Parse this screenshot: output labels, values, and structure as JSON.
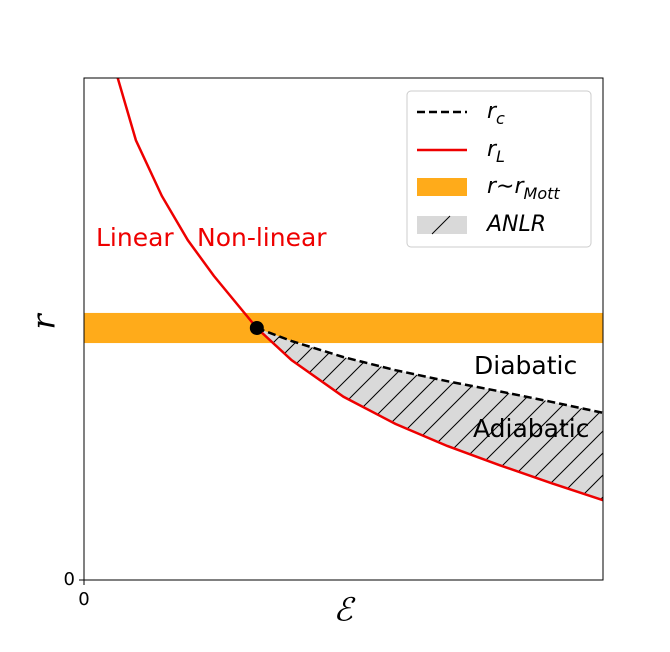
{
  "chart_data": {
    "type": "line",
    "x_label": "ℰ",
    "y_label": "r",
    "xlim": [
      0,
      10
    ],
    "ylim": [
      0,
      10
    ],
    "xticks": [
      0
    ],
    "yticks": [
      0
    ],
    "x": [
      0.65,
      1.0,
      1.5,
      2.0,
      2.5,
      3.33,
      4.0,
      5.0,
      6.0,
      7.0,
      8.0,
      9.0,
      10.0
    ],
    "series": [
      {
        "name": "r_c",
        "color": "#000000",
        "dash": true,
        "values": [
          null,
          null,
          null,
          null,
          null,
          5.02,
          4.76,
          4.44,
          4.18,
          3.96,
          3.76,
          3.55,
          3.33
        ]
      },
      {
        "name": "r_L",
        "color": "#ee0000",
        "dash": false,
        "values": [
          10.0,
          8.76,
          7.65,
          6.77,
          6.06,
          5.02,
          4.38,
          3.65,
          3.11,
          2.67,
          2.29,
          1.93,
          1.59
        ]
      }
    ],
    "band": {
      "name": "r∼r_Mott",
      "color": "#ffab1a",
      "range": [
        4.72,
        5.32
      ]
    },
    "region": {
      "name": "ANLR",
      "color": "#d9d9d9"
    },
    "annotations": [
      "Linear",
      "Non-linear",
      "Diabatic",
      "Adiabatic"
    ],
    "legend": "upper right"
  }
}
